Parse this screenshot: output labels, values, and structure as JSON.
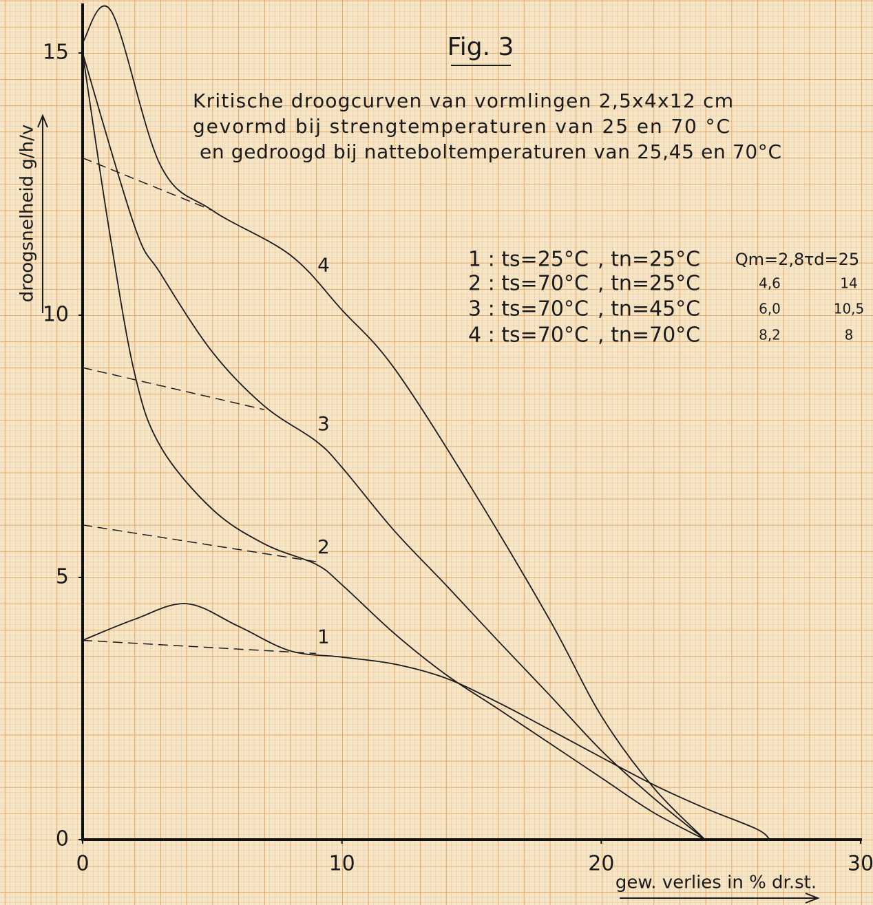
{
  "chart_data": {
    "type": "line",
    "title": "Fig. 3",
    "subtitle": [
      "Kritische droogcurven van vormlingen 2,5x4x12 cm",
      "gevormd bij strengtemperaturen van 25 en 70 °C",
      "en gedroogd bij nattebol­temperaturen van 25,45 en 70°C"
    ],
    "xlabel": "gew. verlies in % dr.st.",
    "ylabel": "droogsnelheid g/h/v",
    "xlim": [
      0,
      30
    ],
    "ylim": [
      0,
      16
    ],
    "xticks": [
      0,
      10,
      20,
      30
    ],
    "yticks": [
      0,
      5,
      10,
      15
    ],
    "color": "#1a1a1a",
    "series": [
      {
        "name": "1",
        "x": [
          0,
          2,
          4,
          6,
          8,
          10,
          12,
          14,
          16,
          18,
          20,
          22,
          24,
          26,
          26.5
        ],
        "values": [
          3.8,
          4.2,
          4.5,
          4.07,
          3.6,
          3.48,
          3.35,
          3.08,
          2.62,
          2.1,
          1.57,
          1.05,
          0.6,
          0.2,
          0
        ]
      },
      {
        "name": "2",
        "x": [
          0,
          1,
          2,
          3,
          5,
          7,
          9,
          10,
          12,
          14,
          16,
          18,
          20,
          22,
          24
        ],
        "values": [
          15,
          11.7,
          8.9,
          7.5,
          6.3,
          5.64,
          5.25,
          4.86,
          3.94,
          3.15,
          2.5,
          1.84,
          1.18,
          0.52,
          0
        ]
      },
      {
        "name": "3",
        "x": [
          0,
          2,
          3,
          5,
          7,
          9,
          10,
          12,
          14,
          16,
          18,
          20,
          22,
          24
        ],
        "values": [
          15,
          11.7,
          10.8,
          9.3,
          8.27,
          7.6,
          7.1,
          5.9,
          4.86,
          3.8,
          2.76,
          1.7,
          0.8,
          0
        ]
      },
      {
        "name": "4",
        "x": [
          0,
          1.1,
          3,
          5,
          8,
          10,
          12,
          15,
          18,
          20,
          22,
          24
        ],
        "values": [
          15.2,
          15.8,
          12.86,
          12,
          11.15,
          10.1,
          9,
          6.7,
          4.2,
          2.36,
          1,
          0
        ]
      }
    ],
    "tangents": [
      {
        "x": [
          0,
          9
        ],
        "values": [
          3.8,
          3.55
        ]
      },
      {
        "x": [
          0,
          9
        ],
        "values": [
          6,
          5.3
        ]
      },
      {
        "x": [
          0,
          7
        ],
        "values": [
          9,
          8.2
        ]
      },
      {
        "x": [
          0,
          5
        ],
        "values": [
          13,
          12
        ]
      }
    ],
    "legend_rows": [
      [
        "1 : ts=25°C",
        ", tn=25°C",
        "Qm=2,8",
        "τd=25"
      ],
      [
        "2 : ts=70°C",
        ", tn=25°C",
        "4,6",
        "14"
      ],
      [
        "3 : ts=70°C",
        ", tn=45°C",
        "6,0",
        "10,5"
      ],
      [
        "4 : ts=70°C",
        ", tn=70°C",
        "8,2",
        "8"
      ]
    ]
  }
}
